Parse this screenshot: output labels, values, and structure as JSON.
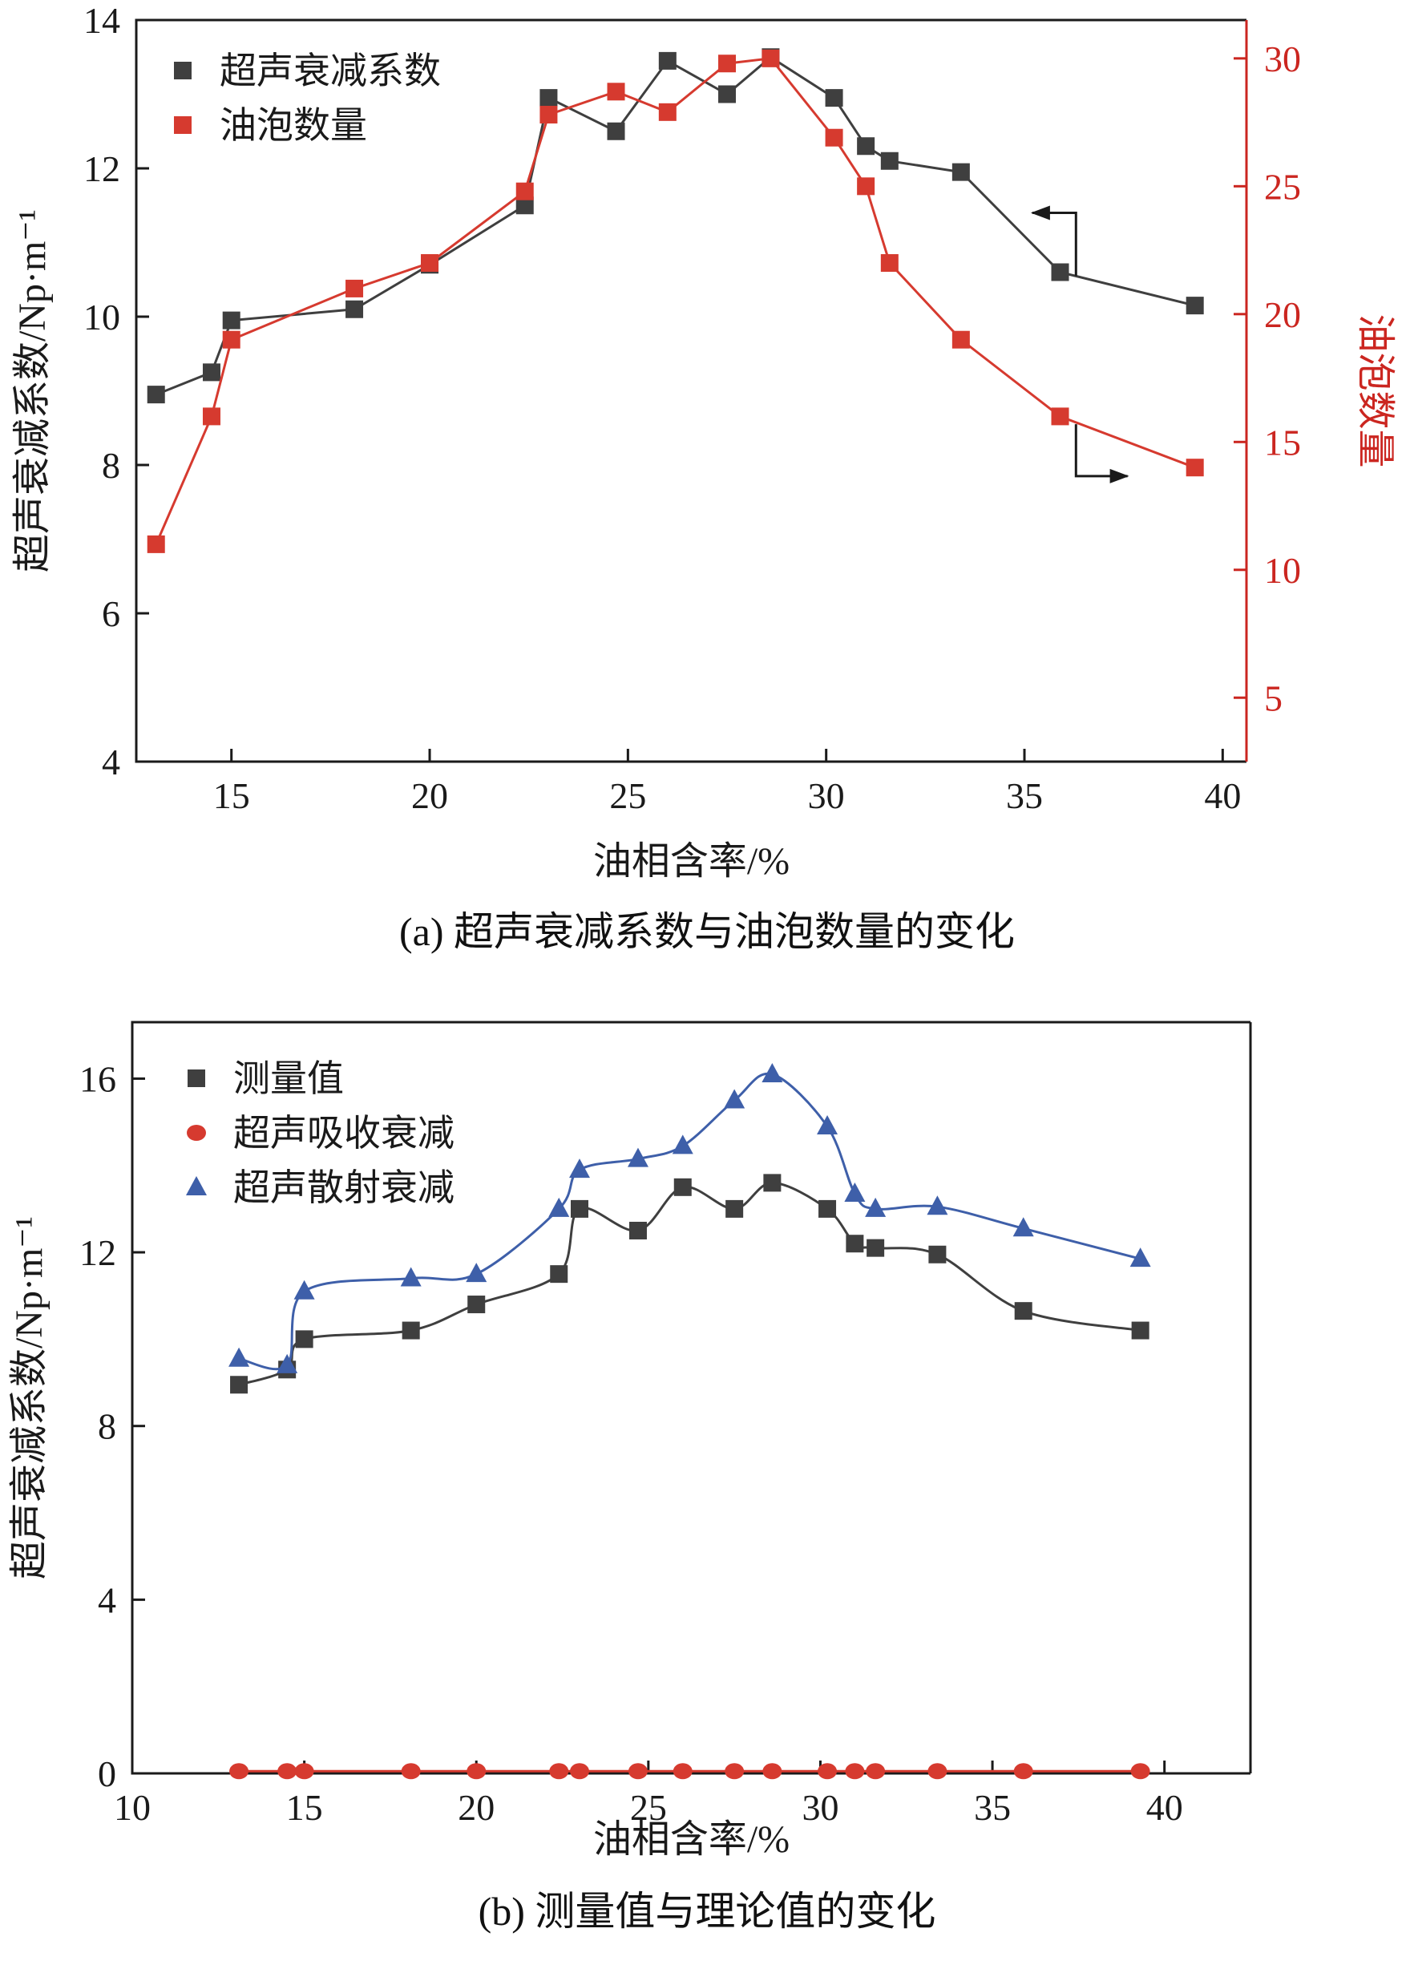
{
  "page": {
    "background": "#ffffff"
  },
  "figures": [
    {
      "caption": "(a) 超声衰减系数与油泡数量的变化"
    },
    {
      "caption": "(b) 测量值与理论值的变化"
    }
  ],
  "colors": {
    "ink": "#1a1a1a",
    "dark_series": "#3f3f3f",
    "red_series": "#d63a2f",
    "red_axis": "#cb2620",
    "blue_series": "#3e5fa9"
  },
  "chart_data": [
    {
      "id": "chart-a",
      "type": "line",
      "xlabel": "油相含率/%",
      "ylabel": "超声衰减系数/Np·m⁻¹",
      "ylabel_right": "油泡数量",
      "xlim": [
        12.6,
        40.6
      ],
      "xticks": [
        15,
        20,
        25,
        30,
        35,
        40
      ],
      "ylim": [
        4,
        14
      ],
      "yticks": [
        4,
        6,
        8,
        10,
        12,
        14
      ],
      "ylim_right": [
        2.5,
        31.5
      ],
      "yticks_right": [
        5,
        10,
        15,
        20,
        25,
        30
      ],
      "right_axis_color": "#cb2620",
      "grid": false,
      "legend_position": "top-left",
      "x": [
        13.1,
        14.5,
        15.0,
        18.1,
        20.0,
        22.4,
        23.0,
        24.7,
        26.0,
        27.5,
        28.6,
        30.2,
        31.0,
        31.6,
        33.4,
        35.9,
        39.3
      ],
      "series": [
        {
          "name": "超声衰减系数",
          "axis": "left",
          "marker": "square",
          "color": "#3f3f3f",
          "smooth": false,
          "values": [
            8.95,
            9.25,
            9.95,
            10.1,
            10.7,
            11.5,
            12.95,
            12.5,
            13.45,
            13.0,
            13.5,
            12.95,
            12.3,
            12.1,
            11.95,
            10.6,
            10.15
          ]
        },
        {
          "name": "油泡数量",
          "axis": "right",
          "marker": "square",
          "color": "#d63a2f",
          "smooth": false,
          "values": [
            11.0,
            16.0,
            19.0,
            21.0,
            22.0,
            24.8,
            27.8,
            28.7,
            27.9,
            29.8,
            30.0,
            26.9,
            25.0,
            22.0,
            19.0,
            16.0,
            14.0
          ]
        }
      ],
      "annotations": [
        {
          "type": "elbow-arrow",
          "meaning": "points-to-left-axis",
          "points_data": [
            [
              36.3,
              10.55
            ],
            [
              36.3,
              11.4
            ],
            [
              35.2,
              11.4
            ]
          ],
          "head": "left"
        },
        {
          "type": "elbow-arrow",
          "meaning": "points-to-right-axis",
          "points_data": [
            [
              36.3,
              8.55
            ],
            [
              36.3,
              7.85
            ],
            [
              37.6,
              7.85
            ]
          ],
          "head": "right"
        }
      ]
    },
    {
      "id": "chart-b",
      "type": "line",
      "xlabel": "油相含率/%",
      "ylabel": "超声衰减系数/Np·m⁻¹",
      "xlim": [
        10,
        42.5
      ],
      "xticks": [
        10,
        15,
        20,
        25,
        30,
        35,
        40
      ],
      "ylim": [
        0,
        17.3
      ],
      "yticks": [
        0,
        4,
        8,
        12,
        16
      ],
      "grid": false,
      "legend_position": "top-left",
      "x": [
        13.1,
        14.5,
        15.0,
        18.1,
        20.0,
        22.4,
        23.0,
        24.7,
        26.0,
        27.5,
        28.6,
        30.2,
        31.0,
        31.6,
        33.4,
        35.9,
        39.3
      ],
      "series": [
        {
          "name": "测量值",
          "axis": "left",
          "marker": "square",
          "color": "#3f3f3f",
          "smooth": true,
          "values": [
            8.95,
            9.3,
            10.0,
            10.2,
            10.8,
            11.5,
            13.0,
            12.5,
            13.5,
            13.0,
            13.6,
            13.0,
            12.2,
            12.1,
            11.95,
            10.65,
            10.2
          ]
        },
        {
          "name": "超声吸收衰减",
          "axis": "left",
          "marker": "circle",
          "color": "#d63a2f",
          "smooth": false,
          "values": [
            0.05,
            0.05,
            0.05,
            0.05,
            0.05,
            0.05,
            0.05,
            0.05,
            0.05,
            0.05,
            0.05,
            0.05,
            0.05,
            0.05,
            0.05,
            0.05,
            0.05
          ]
        },
        {
          "name": "超声散射衰减",
          "axis": "left",
          "marker": "triangle",
          "color": "#3e5fa9",
          "smooth": true,
          "values": [
            9.55,
            9.4,
            11.1,
            11.4,
            11.5,
            13.0,
            13.9,
            14.15,
            14.45,
            15.5,
            16.1,
            14.9,
            13.35,
            13.0,
            13.05,
            12.55,
            11.85
          ]
        }
      ],
      "annotations": []
    }
  ]
}
